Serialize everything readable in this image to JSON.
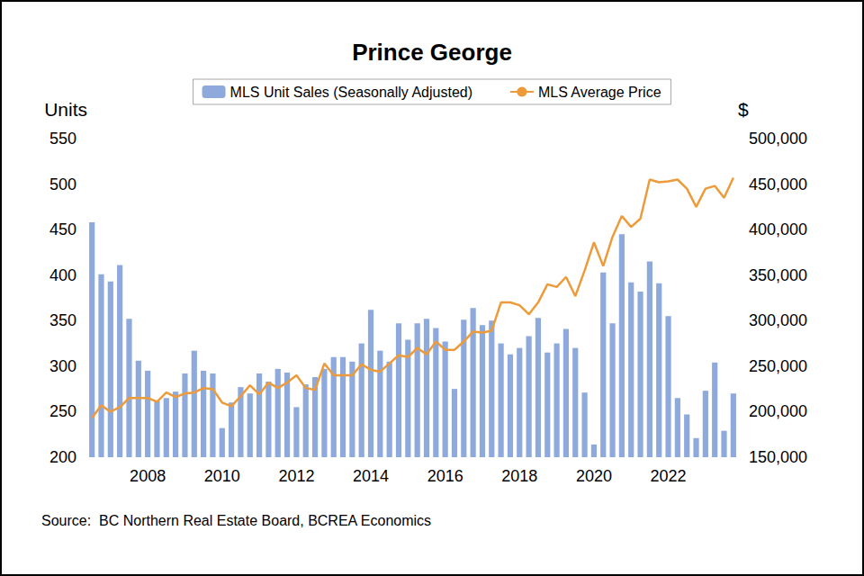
{
  "chart_data": {
    "type": "bar",
    "title": "Prince George",
    "annotations": [
      "Source:  BC Northern Real Estate Board, BCREA Economics"
    ],
    "y_label": "Units",
    "y2_label": "$",
    "categories": [
      null,
      null,
      null,
      null,
      null,
      null,
      "2008",
      null,
      null,
      null,
      null,
      null,
      null,
      null,
      "2010",
      null,
      null,
      null,
      null,
      null,
      null,
      null,
      "2012",
      null,
      null,
      null,
      null,
      null,
      null,
      null,
      "2014",
      null,
      null,
      null,
      null,
      null,
      null,
      null,
      "2016",
      null,
      null,
      null,
      null,
      null,
      null,
      null,
      "2018",
      null,
      null,
      null,
      null,
      null,
      null,
      null,
      "2020",
      null,
      null,
      null,
      null,
      null,
      null,
      null,
      "2022",
      null,
      null,
      null,
      null,
      null,
      null,
      null
    ],
    "series": [
      {
        "name": "MLS Unit Sales (Seasonally Adjusted)",
        "type": "bar",
        "color": "#8EA9DB",
        "values": [
          458,
          401,
          393,
          411,
          352,
          306,
          295,
          262,
          265,
          272,
          292,
          317,
          295,
          292,
          232,
          260,
          277,
          270,
          292,
          283,
          297,
          293,
          255,
          280,
          288,
          297,
          310,
          310,
          305,
          325,
          362,
          317,
          305,
          347,
          329,
          347,
          352,
          342,
          327,
          275,
          351,
          364,
          345,
          350,
          325,
          313,
          320,
          333,
          353,
          315,
          325,
          341,
          320,
          271,
          214,
          403,
          347,
          445,
          392,
          382,
          415,
          391,
          355,
          265,
          247,
          221,
          273,
          304,
          229,
          270
        ]
      },
      {
        "name": "MLS Average Price",
        "type": "line",
        "axis": "y2",
        "color": "#ED9B3A",
        "values": [
          193000,
          207000,
          200000,
          205000,
          215000,
          215000,
          215000,
          211000,
          221000,
          216000,
          220000,
          221000,
          226000,
          225000,
          210000,
          206000,
          217000,
          229000,
          219000,
          232000,
          226000,
          232000,
          240000,
          226000,
          224000,
          253000,
          240000,
          240000,
          240000,
          252000,
          246000,
          244000,
          253000,
          262000,
          260000,
          270000,
          263000,
          277000,
          268000,
          268000,
          277000,
          288000,
          287000,
          289000,
          320000,
          320000,
          317000,
          307000,
          320000,
          340000,
          337000,
          348000,
          327000,
          355000,
          386000,
          360000,
          392000,
          415000,
          403000,
          412000,
          455000,
          452000,
          453000,
          455000,
          445000,
          425000,
          445000,
          448000,
          435000,
          457000
        ]
      }
    ],
    "ylim": [
      200,
      550
    ],
    "yticks": [
      200,
      250,
      300,
      350,
      400,
      450,
      500,
      550
    ],
    "y2lim": [
      150000,
      500000
    ],
    "y2ticks": [
      {
        "value": 150000,
        "label": "150,000"
      },
      {
        "value": 200000,
        "label": "200,000"
      },
      {
        "value": 250000,
        "label": "250,000"
      },
      {
        "value": 300000,
        "label": "300,000"
      },
      {
        "value": 350000,
        "label": "350,000"
      },
      {
        "value": 400000,
        "label": "400,000"
      },
      {
        "value": 450000,
        "label": "450,000"
      },
      {
        "value": 500000,
        "label": "500,000"
      }
    ],
    "grid": false,
    "legend": "top"
  }
}
